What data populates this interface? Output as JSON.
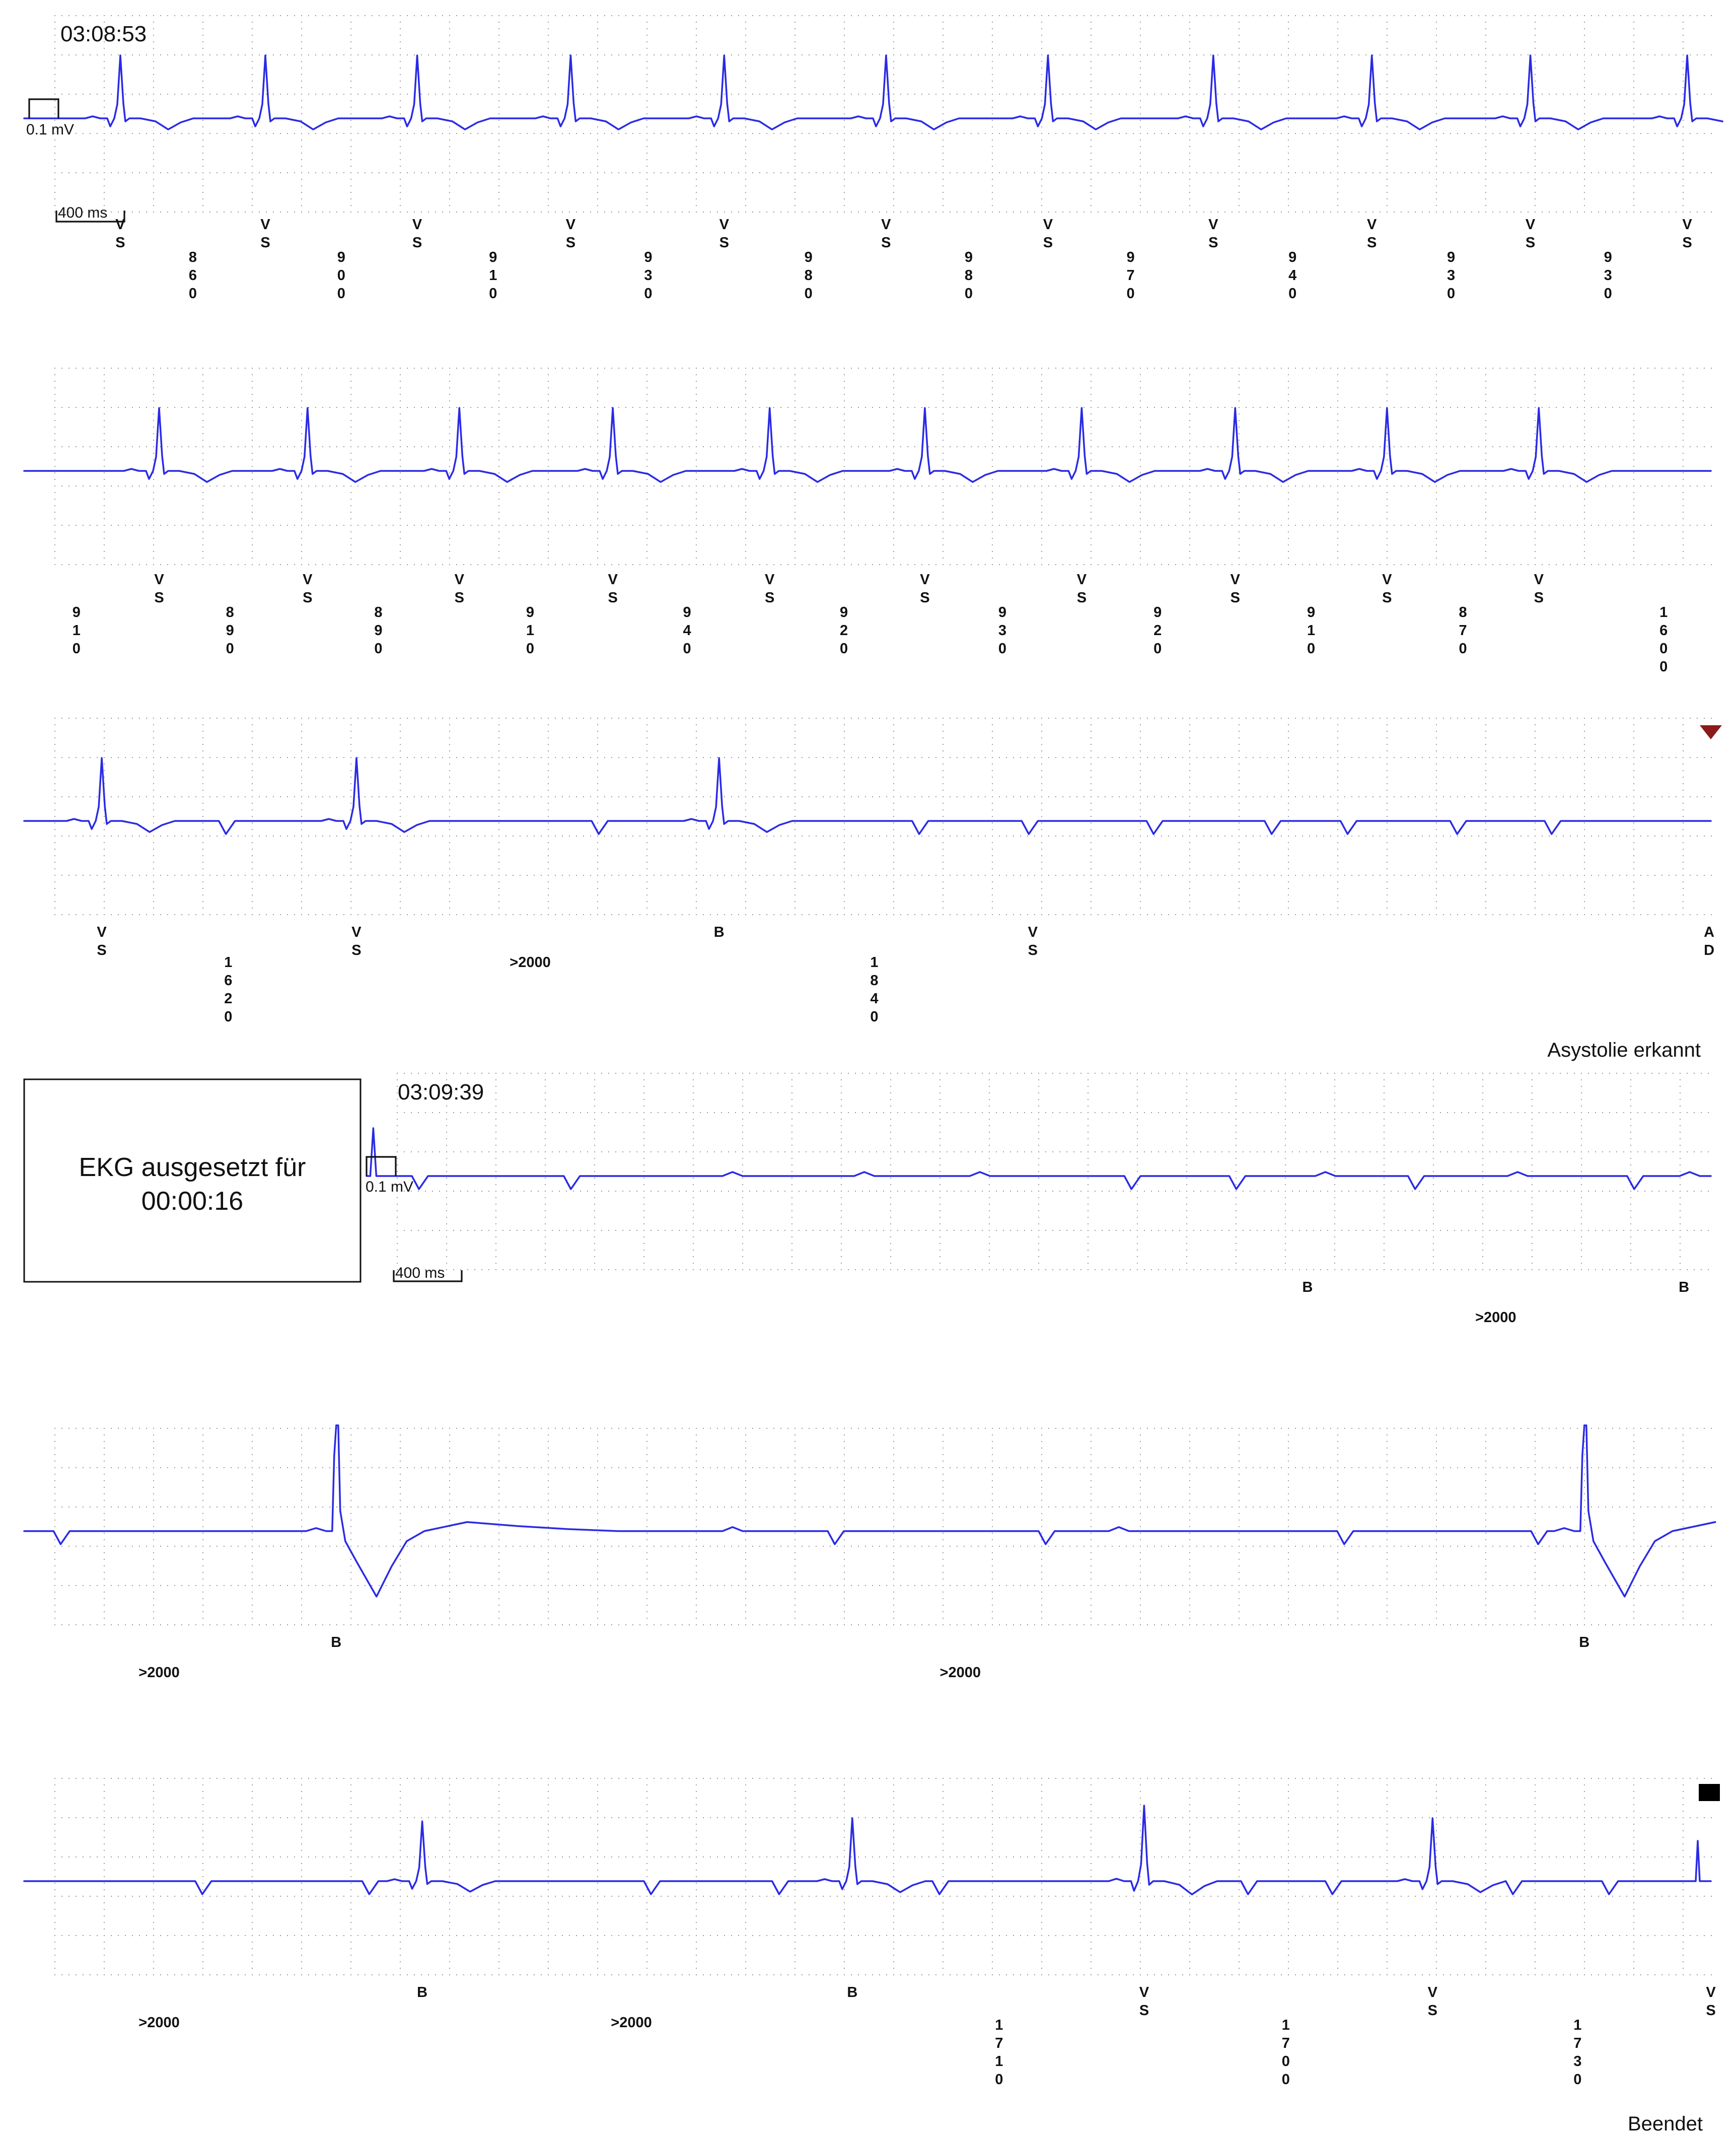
{
  "chart_data": {
    "type": "line",
    "title": "",
    "colors": {
      "trace": "#2a2ae6",
      "grid": "#9a9a9a",
      "marker_red": "#8b1a1a",
      "marker_black": "#000000"
    },
    "grid": true,
    "segments": [
      {
        "start_time": "03:08:53",
        "calibration": {
          "amplitude_label": "0.1 mV",
          "duration_label": "400 ms"
        }
      },
      {
        "start_time": "03:09:39",
        "calibration": {
          "amplitude_label": "0.1 mV",
          "duration_label": "400 ms"
        }
      }
    ],
    "gap_notice": {
      "line1": "EKG ausgesetzt für",
      "line2": "00:00:16"
    },
    "strips": [
      {
        "beats": [
          {
            "x": 0.057,
            "mark": [
              "V",
              "S"
            ]
          },
          {
            "x": 0.143,
            "mark": [
              "V",
              "S"
            ]
          },
          {
            "x": 0.233,
            "mark": [
              "V",
              "S"
            ]
          },
          {
            "x": 0.324,
            "mark": [
              "V",
              "S"
            ]
          },
          {
            "x": 0.415,
            "mark": [
              "V",
              "S"
            ]
          },
          {
            "x": 0.511,
            "mark": [
              "V",
              "S"
            ]
          },
          {
            "x": 0.607,
            "mark": [
              "V",
              "S"
            ]
          },
          {
            "x": 0.705,
            "mark": [
              "V",
              "S"
            ]
          },
          {
            "x": 0.799,
            "mark": [
              "V",
              "S"
            ]
          },
          {
            "x": 0.893,
            "mark": [
              "V",
              "S"
            ]
          },
          {
            "x": 0.986,
            "mark": [
              "V",
              "S"
            ]
          }
        ],
        "intervals": [
          {
            "x": 0.1,
            "value": "860"
          },
          {
            "x": 0.188,
            "value": "900"
          },
          {
            "x": 0.278,
            "value": "910"
          },
          {
            "x": 0.37,
            "value": "930"
          },
          {
            "x": 0.465,
            "value": "980"
          },
          {
            "x": 0.56,
            "value": "980"
          },
          {
            "x": 0.656,
            "value": "970"
          },
          {
            "x": 0.752,
            "value": "940"
          },
          {
            "x": 0.846,
            "value": "930"
          },
          {
            "x": 0.939,
            "value": "930"
          }
        ]
      },
      {
        "beats": [
          {
            "x": 0.08,
            "mark": [
              "V",
              "S"
            ]
          },
          {
            "x": 0.168,
            "mark": [
              "V",
              "S"
            ]
          },
          {
            "x": 0.258,
            "mark": [
              "V",
              "S"
            ]
          },
          {
            "x": 0.349,
            "mark": [
              "V",
              "S"
            ]
          },
          {
            "x": 0.442,
            "mark": [
              "V",
              "S"
            ]
          },
          {
            "x": 0.534,
            "mark": [
              "V",
              "S"
            ]
          },
          {
            "x": 0.627,
            "mark": [
              "V",
              "S"
            ]
          },
          {
            "x": 0.718,
            "mark": [
              "V",
              "S"
            ]
          },
          {
            "x": 0.808,
            "mark": [
              "V",
              "S"
            ]
          },
          {
            "x": 0.898,
            "mark": [
              "V",
              "S"
            ]
          }
        ],
        "intervals": [
          {
            "x": 0.031,
            "value": "910"
          },
          {
            "x": 0.122,
            "value": "890"
          },
          {
            "x": 0.21,
            "value": "890"
          },
          {
            "x": 0.3,
            "value": "910"
          },
          {
            "x": 0.393,
            "value": "940"
          },
          {
            "x": 0.486,
            "value": "920"
          },
          {
            "x": 0.58,
            "value": "930"
          },
          {
            "x": 0.672,
            "value": "920"
          },
          {
            "x": 0.763,
            "value": "910"
          },
          {
            "x": 0.853,
            "value": "870"
          },
          {
            "x": 0.972,
            "value": "1600"
          }
        ],
        "triangle_marker": true
      },
      {
        "beats": [
          {
            "x": 0.046,
            "mark": [
              "V",
              "S"
            ]
          },
          {
            "x": 0.197,
            "mark": [
              "V",
              "S"
            ]
          },
          {
            "x": 0.412,
            "mark": [
              "B"
            ]
          },
          {
            "x": 0.598,
            "mark": [
              "V",
              "S"
            ]
          },
          {
            "x": 0.999,
            "mark": [
              "A",
              "D"
            ]
          }
        ],
        "intervals": [
          {
            "x": 0.121,
            "value": "1620"
          },
          {
            "x": 0.3,
            "value": ">2000",
            "inline": true
          },
          {
            "x": 0.504,
            "value": "1840"
          }
        ],
        "event_label": "Asystolie erkannt"
      },
      {
        "beats": [
          {
            "x": 0.7,
            "mark": [
              "B"
            ]
          },
          {
            "x": 0.98,
            "mark": [
              "B"
            ]
          }
        ],
        "intervals": [
          {
            "x": 0.84,
            "value": ">2000",
            "inline": true
          }
        ]
      },
      {
        "beats": [
          {
            "x": 0.185,
            "mark": [
              "B"
            ]
          },
          {
            "x": 0.925,
            "mark": [
              "B"
            ]
          }
        ],
        "intervals": [
          {
            "x": 0.08,
            "value": ">2000",
            "inline": true
          },
          {
            "x": 0.555,
            "value": ">2000",
            "inline": true
          }
        ]
      },
      {
        "beats": [
          {
            "x": 0.236,
            "mark": [
              "B"
            ]
          },
          {
            "x": 0.491,
            "mark": [
              "B"
            ]
          },
          {
            "x": 0.664,
            "mark": [
              "V",
              "S"
            ]
          },
          {
            "x": 0.835,
            "mark": [
              "V",
              "S"
            ]
          },
          {
            "x": 1.0,
            "mark": [
              "V",
              "S"
            ]
          }
        ],
        "intervals": [
          {
            "x": 0.08,
            "value": ">2000",
            "inline": true
          },
          {
            "x": 0.36,
            "value": ">2000",
            "inline": true
          },
          {
            "x": 0.578,
            "value": "1710"
          },
          {
            "x": 0.748,
            "value": "1700"
          },
          {
            "x": 0.921,
            "value": "1730"
          }
        ],
        "event_label": "Beendet",
        "square_marker": true
      }
    ]
  }
}
